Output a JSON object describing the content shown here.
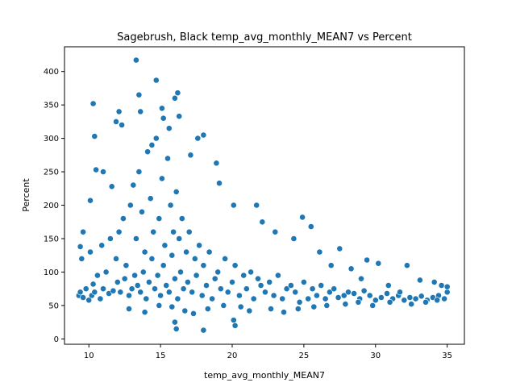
{
  "chart_data": {
    "type": "scatter",
    "title": "Sagebrush, Black temp_avg_monthly_MEAN7 vs Percent",
    "xlabel": "temp_avg_monthly_MEAN7",
    "ylabel": "Percent",
    "xlim": [
      8.3,
      36.2
    ],
    "ylim": [
      -8,
      437
    ],
    "x_ticks": [
      10,
      15,
      20,
      25,
      30,
      35
    ],
    "y_ticks": [
      0,
      50,
      100,
      150,
      200,
      250,
      300,
      350,
      400
    ],
    "grid": false,
    "legend": "none",
    "point_color": "#1f77b4",
    "series": [
      {
        "x": [
          9.3,
          9.4,
          9.5,
          9.6,
          9.8,
          10.0,
          10.1,
          10.2,
          10.3,
          10.4,
          10.6,
          10.8,
          10.9,
          11.0,
          11.2,
          11.4,
          11.5,
          11.7,
          11.9,
          12.0,
          12.1,
          12.2,
          12.4,
          12.5,
          12.6,
          12.8,
          12.9,
          13.0,
          13.1,
          13.2,
          13.3,
          13.4,
          13.5,
          13.6,
          13.7,
          13.8,
          13.9,
          14.0,
          14.1,
          14.2,
          14.3,
          14.4,
          14.5,
          14.6,
          14.7,
          14.8,
          14.9,
          15.0,
          15.1,
          15.2,
          15.3,
          15.4,
          15.5,
          15.6,
          15.7,
          15.8,
          15.9,
          16.0,
          16.1,
          16.2,
          16.3,
          16.4,
          16.5,
          16.6,
          16.8,
          16.9,
          17.0,
          17.2,
          17.4,
          17.5,
          17.7,
          17.9,
          18.0,
          18.2,
          18.4,
          18.6,
          18.8,
          19.0,
          19.2,
          19.5,
          19.7,
          20.0,
          20.2,
          20.5,
          20.8,
          21.0,
          21.3,
          21.5,
          21.8,
          22.0,
          22.3,
          22.6,
          22.9,
          23.2,
          23.5,
          23.8,
          24.1,
          24.4,
          24.7,
          25.0,
          25.3,
          25.6,
          25.9,
          26.2,
          26.5,
          26.8,
          27.1,
          27.4,
          27.8,
          28.1,
          28.5,
          28.9,
          29.2,
          29.6,
          30.0,
          30.4,
          30.8,
          31.2,
          31.6,
          32.0,
          32.4,
          32.8,
          33.2,
          33.6,
          34.0,
          34.4,
          34.8,
          35.0,
          13.3,
          10.3,
          10.4,
          14.7,
          16.2,
          16.0,
          15.1,
          18.0,
          15.6,
          16.3,
          13.5,
          12.1,
          11.9,
          18.9,
          20.1,
          21.7,
          24.9,
          25.5,
          19.1,
          26.1,
          27.5,
          29.4,
          30.2,
          32.2,
          16.0,
          16.1,
          18.0,
          20.1,
          20.2,
          10.1,
          10.5,
          11.0,
          11.6,
          9.4,
          9.6,
          12.3,
          13.6,
          14.4,
          15.2,
          17.1,
          17.6,
          22.1,
          23.0,
          24.3,
          26.9,
          28.3,
          29.0,
          30.9,
          31.7,
          33.1,
          34.1,
          34.6,
          35.0,
          12.8,
          13.9,
          14.9,
          15.8,
          16.7,
          17.3,
          18.3,
          19.4,
          20.6,
          21.2,
          22.7,
          23.6,
          24.6,
          25.7,
          26.6,
          27.9,
          28.8,
          29.8,
          31.0,
          32.5,
          33.5,
          34.3
        ],
        "y": [
          65,
          70,
          120,
          62,
          75,
          58,
          130,
          65,
          82,
          70,
          95,
          60,
          140,
          75,
          100,
          68,
          150,
          72,
          120,
          85,
          160,
          70,
          180,
          90,
          110,
          65,
          200,
          75,
          230,
          95,
          150,
          80,
          250,
          70,
          190,
          100,
          130,
          60,
          280,
          85,
          210,
          120,
          160,
          75,
          300,
          95,
          180,
          65,
          240,
          110,
          140,
          80,
          270,
          70,
          200,
          125,
          160,
          90,
          220,
          60,
          150,
          100,
          180,
          75,
          130,
          85,
          160,
          70,
          120,
          95,
          140,
          65,
          110,
          80,
          130,
          60,
          90,
          100,
          75,
          120,
          70,
          85,
          110,
          65,
          95,
          75,
          100,
          60,
          90,
          80,
          70,
          85,
          65,
          95,
          60,
          75,
          80,
          70,
          55,
          85,
          60,
          75,
          65,
          80,
          60,
          70,
          75,
          62,
          65,
          70,
          68,
          60,
          72,
          65,
          58,
          62,
          68,
          60,
          65,
          58,
          62,
          60,
          64,
          58,
          62,
          65,
          60,
          70,
          417,
          352,
          303,
          387,
          368,
          360,
          345,
          305,
          315,
          333,
          365,
          340,
          325,
          263,
          200,
          200,
          182,
          168,
          233,
          130,
          135,
          118,
          113,
          110,
          25,
          15,
          13,
          28,
          20,
          207,
          253,
          250,
          228,
          138,
          160,
          320,
          340,
          290,
          330,
          275,
          300,
          175,
          160,
          150,
          110,
          105,
          90,
          80,
          70,
          88,
          85,
          80,
          78,
          45,
          40,
          50,
          48,
          42,
          38,
          45,
          50,
          48,
          42,
          45,
          40,
          45,
          48,
          50,
          52,
          55,
          50,
          55,
          52,
          55,
          58
        ]
      }
    ]
  }
}
